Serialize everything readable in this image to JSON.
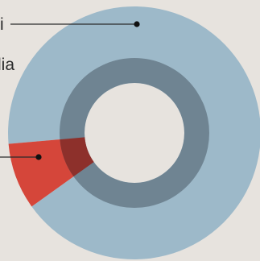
{
  "chart_data": {
    "type": "pie",
    "variant": "donut",
    "cropped": true,
    "outer_ring": {
      "series": [
        {
          "label": "i",
          "value": 91.5,
          "color": "#9db9c9"
        },
        {
          "label": "",
          "value": 8.5,
          "color": "#d5463a"
        }
      ]
    },
    "inner_ring": {
      "series": [
        {
          "label": "lia",
          "value": 100,
          "color": "#6f8492"
        }
      ],
      "overlap_color": "#8d302b"
    }
  }
}
